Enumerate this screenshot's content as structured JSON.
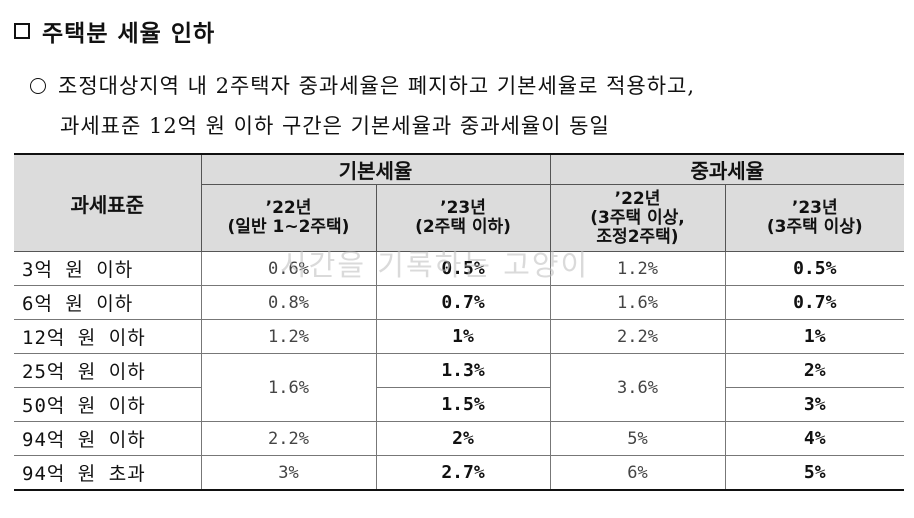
{
  "heading": "주택분 세율 인하",
  "bullet": {
    "line1": "조정대상지역 내 2주택자 중과세율은 폐지하고 기본세율로 적용하고,",
    "line2": "과세표준 12억 원 이하 구간은 기본세율과 중과세율이 동일"
  },
  "table": {
    "base_header": "과세표준",
    "group1": "기본세율",
    "group2": "중과세율",
    "sub": [
      {
        "year": "’22년",
        "note": "(일반 1~2주택)"
      },
      {
        "year": "’23년",
        "note": "(2주택 이하)"
      },
      {
        "year": "’22년",
        "note": "(3주택 이상,\n조정2주택)"
      },
      {
        "year": "’23년",
        "note": "(3주택 이상)"
      }
    ],
    "rows": [
      {
        "label": "3억 원 이하",
        "b22": "0.6%",
        "b23": "0.5%",
        "h22": "1.2%",
        "h23": "0.5%"
      },
      {
        "label": "6억 원 이하",
        "b22": "0.8%",
        "b23": "0.7%",
        "h22": "1.6%",
        "h23": "0.7%"
      },
      {
        "label": "12억 원 이하",
        "b22": "1.2%",
        "b23": "1%",
        "h22": "2.2%",
        "h23": "1%"
      },
      {
        "label": "25억 원 이하",
        "b22": "1.6%",
        "b23": "1.3%",
        "h22": "3.6%",
        "h23": "2%"
      },
      {
        "label": "50억 원 이하",
        "b23": "1.5%",
        "h23": "3%"
      },
      {
        "label": "94억 원 이하",
        "b22": "2.2%",
        "b23": "2%",
        "h22": "5%",
        "h23": "4%"
      },
      {
        "label": "94억 원 초과",
        "b22": "3%",
        "b23": "2.7%",
        "h22": "6%",
        "h23": "5%"
      }
    ]
  },
  "watermark": "시간을 기록하는 고양이",
  "icons": {
    "heading_marker": "square-icon",
    "bullet_marker": "circle-icon"
  }
}
